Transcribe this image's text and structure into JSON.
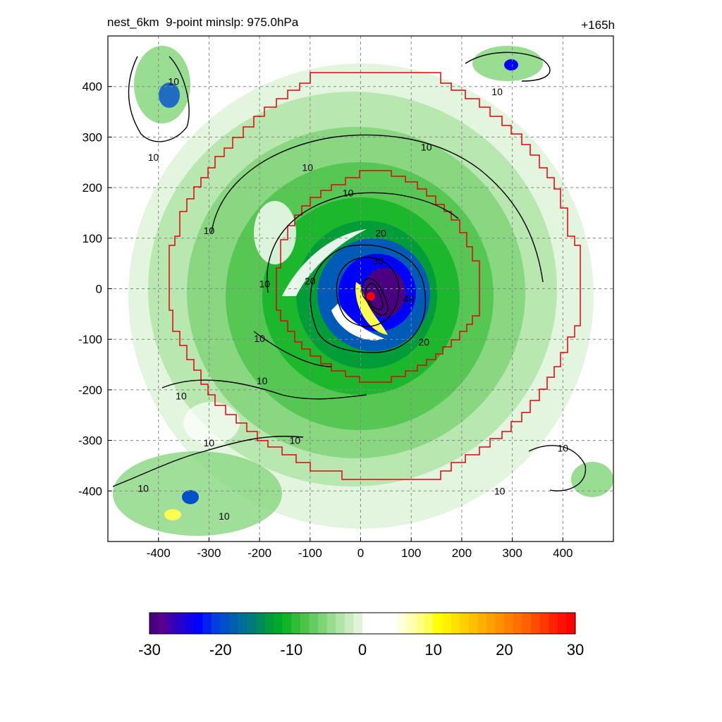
{
  "header": {
    "title_left": "nest_6km  9-point minslp: 975.0hPa",
    "title_right": "+165h"
  },
  "chart_data": {
    "type": "heatmap",
    "xlim": [
      -500,
      500
    ],
    "ylim": [
      -500,
      500
    ],
    "xticks": [
      -400,
      -300,
      -200,
      -100,
      0,
      100,
      200,
      300,
      400
    ],
    "yticks": [
      400,
      300,
      200,
      100,
      0,
      -100,
      -200,
      -300,
      -400
    ],
    "grid": true,
    "center_marker": {
      "x": 20,
      "y": -15,
      "color": "#ff0000"
    },
    "contour_labels": [
      {
        "text": "10",
        "x": -370,
        "y": 410
      },
      {
        "text": "10",
        "x": -410,
        "y": 260
      },
      {
        "text": "10",
        "x": 270,
        "y": 390
      },
      {
        "text": "10",
        "x": 130,
        "y": 280
      },
      {
        "text": "10",
        "x": -105,
        "y": 240
      },
      {
        "text": "10",
        "x": -25,
        "y": 190
      },
      {
        "text": "10",
        "x": -300,
        "y": 115
      },
      {
        "text": "10",
        "x": -190,
        "y": 10
      },
      {
        "text": "10",
        "x": -200,
        "y": -98
      },
      {
        "text": "10",
        "x": -195,
        "y": -182
      },
      {
        "text": "10",
        "x": -355,
        "y": -212
      },
      {
        "text": "10",
        "x": -300,
        "y": -305
      },
      {
        "text": "10",
        "x": -130,
        "y": -300
      },
      {
        "text": "10",
        "x": -430,
        "y": -395
      },
      {
        "text": "10",
        "x": -270,
        "y": -450
      },
      {
        "text": "10",
        "x": 400,
        "y": -315
      },
      {
        "text": "10",
        "x": 275,
        "y": -400
      },
      {
        "text": "20",
        "x": 40,
        "y": 110
      },
      {
        "text": "20",
        "x": -100,
        "y": 15
      },
      {
        "text": "20",
        "x": 125,
        "y": -105
      },
      {
        "text": "30",
        "x": 35,
        "y": 55
      },
      {
        "text": "40",
        "x": 95,
        "y": -20
      }
    ],
    "colorbar": {
      "min": -30,
      "max": 30,
      "tick_values": [
        -30,
        -20,
        -10,
        0,
        10,
        20,
        30
      ],
      "tick_labels": [
        "-30",
        "-20",
        "-10",
        "0",
        "10",
        "20",
        "30"
      ],
      "colors": [
        "#4b0082",
        "#5a008f",
        "#3c00b0",
        "#2a00d0",
        "#1400e6",
        "#0000ff",
        "#0020f0",
        "#0040e0",
        "#0050cc",
        "#0060b0",
        "#006e96",
        "#007a7a",
        "#008a5a",
        "#009a3a",
        "#00a82a",
        "#14b428",
        "#30bc38",
        "#4cc44a",
        "#64cc60",
        "#80d478",
        "#98dc90",
        "#b0e4a8",
        "#c8ecc0",
        "#e0f4da",
        "#ffffff",
        "#ffffff",
        "#ffffff",
        "#ffffff",
        "#ffffd8",
        "#ffffb0",
        "#ffff88",
        "#ffff50",
        "#ffff00",
        "#fff000",
        "#ffe000",
        "#ffd000",
        "#ffc000",
        "#ffb000",
        "#ffa000",
        "#ff9000",
        "#ff8000",
        "#ff7000",
        "#ff6000",
        "#ff4c00",
        "#ff3800",
        "#ff2400",
        "#ff1000",
        "#ff0000"
      ]
    }
  }
}
